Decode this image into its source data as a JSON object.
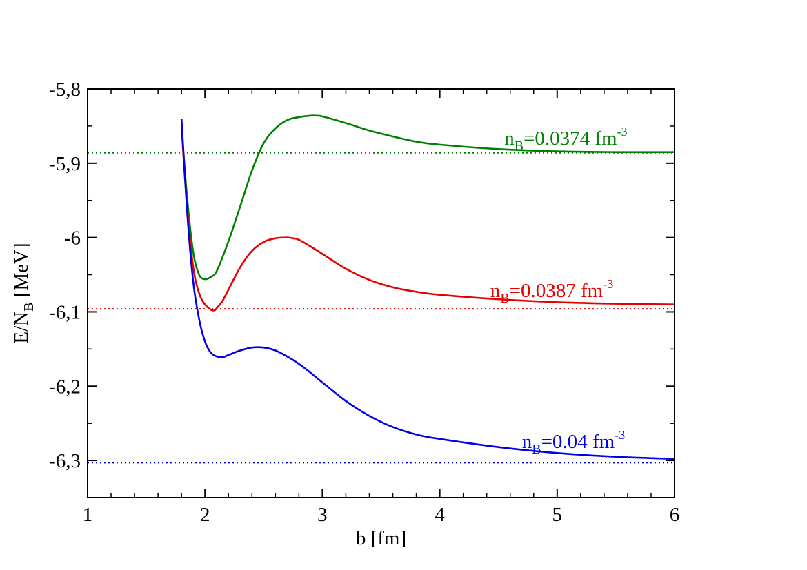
{
  "chart_data": {
    "type": "line",
    "xlabel": "b [fm]",
    "ylabel": {
      "main": "E/N",
      "sub": "B",
      "unit": " [MeV]"
    },
    "xlim": [
      1,
      6
    ],
    "ylim": [
      -6.35,
      -5.8
    ],
    "x_ticks": [
      {
        "value": 1,
        "label": "1"
      },
      {
        "value": 2,
        "label": "2"
      },
      {
        "value": 3,
        "label": "3"
      },
      {
        "value": 4,
        "label": "4"
      },
      {
        "value": 5,
        "label": "5"
      },
      {
        "value": 6,
        "label": "6"
      }
    ],
    "y_ticks": [
      {
        "value": -5.8,
        "label": "-5,8"
      },
      {
        "value": -5.9,
        "label": "-5,9"
      },
      {
        "value": -6.0,
        "label": "-6"
      },
      {
        "value": -6.1,
        "label": "-6,1"
      },
      {
        "value": -6.2,
        "label": "-6,2"
      },
      {
        "value": -6.3,
        "label": "-6,3"
      }
    ],
    "x_minor_step": 0.2,
    "y_minor_step": 0.05,
    "series": [
      {
        "name": "nB=0.0374",
        "color": "#008000",
        "x": [
          1.8,
          1.85,
          1.9,
          1.95,
          2.0,
          2.05,
          2.1,
          2.2,
          2.3,
          2.4,
          2.5,
          2.6,
          2.7,
          2.8,
          2.9,
          2.95,
          3.0,
          3.2,
          3.4,
          3.6,
          3.8,
          4.0,
          4.5,
          5.0,
          5.5,
          6.0
        ],
        "y": [
          -5.852,
          -5.95,
          -6.02,
          -6.05,
          -6.056,
          -6.053,
          -6.045,
          -6.005,
          -5.958,
          -5.91,
          -5.873,
          -5.853,
          -5.842,
          -5.838,
          -5.836,
          -5.836,
          -5.837,
          -5.846,
          -5.856,
          -5.864,
          -5.871,
          -5.875,
          -5.881,
          -5.884,
          -5.885,
          -5.885
        ],
        "reference_y": -5.886,
        "label": {
          "main": "n",
          "sub": "B",
          "value": "=0.0374 fm",
          "sup": "-3"
        },
        "label_pos": {
          "x": 4.55,
          "y": -5.875
        }
      },
      {
        "name": "nB=0.0387",
        "color": "#e60000",
        "x": [
          1.8,
          1.85,
          1.9,
          1.95,
          2.0,
          2.05,
          2.08,
          2.1,
          2.15,
          2.2,
          2.3,
          2.4,
          2.5,
          2.6,
          2.7,
          2.75,
          2.8,
          2.9,
          3.0,
          3.2,
          3.4,
          3.6,
          3.8,
          4.0,
          4.5,
          5.0,
          5.5,
          6.0
        ],
        "y": [
          -5.85,
          -5.965,
          -6.04,
          -6.075,
          -6.09,
          -6.097,
          -6.098,
          -6.095,
          -6.085,
          -6.07,
          -6.04,
          -6.018,
          -6.006,
          -6.001,
          -6.0,
          -6.001,
          -6.003,
          -6.012,
          -6.022,
          -6.042,
          -6.057,
          -6.067,
          -6.073,
          -6.077,
          -6.083,
          -6.087,
          -6.089,
          -6.09
        ],
        "reference_y": -6.096,
        "label": {
          "main": "n",
          "sub": "B",
          "value": "=0.0387 fm",
          "sup": "-3"
        },
        "label_pos": {
          "x": 4.43,
          "y": -6.08
        }
      },
      {
        "name": "nB=0.04",
        "color": "#0000e6",
        "x": [
          1.8,
          1.85,
          1.9,
          1.95,
          2.0,
          2.05,
          2.1,
          2.15,
          2.2,
          2.3,
          2.4,
          2.5,
          2.6,
          2.7,
          2.8,
          2.9,
          3.0,
          3.2,
          3.4,
          3.6,
          3.8,
          4.0,
          4.5,
          5.0,
          5.5,
          6.0
        ],
        "y": [
          -5.84,
          -5.97,
          -6.06,
          -6.11,
          -6.14,
          -6.155,
          -6.16,
          -6.161,
          -6.158,
          -6.152,
          -6.148,
          -6.148,
          -6.152,
          -6.16,
          -6.17,
          -6.182,
          -6.195,
          -6.22,
          -6.24,
          -6.255,
          -6.265,
          -6.271,
          -6.282,
          -6.29,
          -6.295,
          -6.298
        ],
        "reference_y": -6.303,
        "label": {
          "main": "n",
          "sub": "B",
          "value": "=0.04 fm",
          "sup": "-3"
        },
        "label_pos": {
          "x": 4.7,
          "y": -6.283
        }
      }
    ]
  }
}
